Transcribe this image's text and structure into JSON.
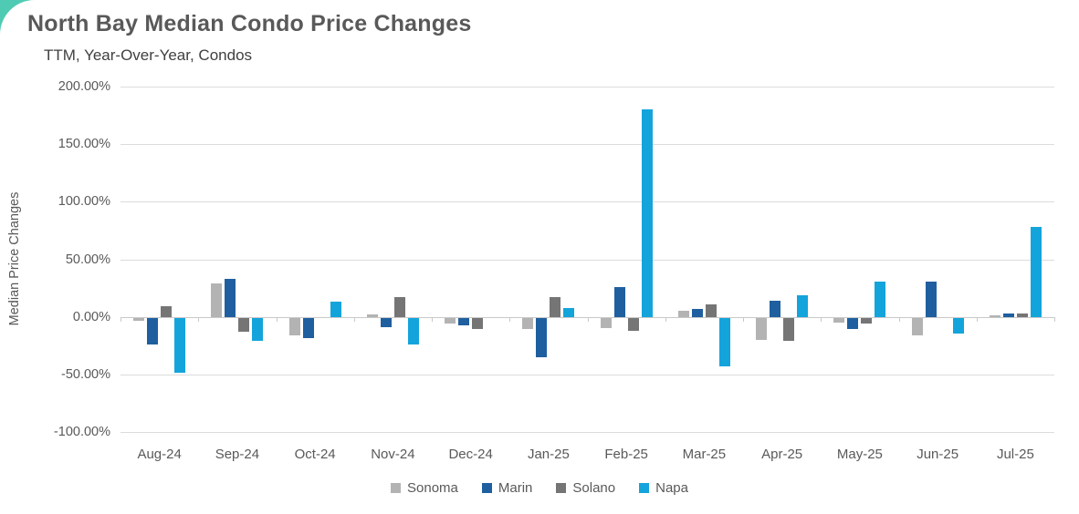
{
  "page": {
    "accent_color": "#4FCBB3",
    "background_color": "#FFFFFF"
  },
  "chart_data": {
    "type": "bar",
    "title": "North Bay Median Condo Price Changes",
    "subtitle": "TTM, Year-Over-Year, Condos",
    "ylabel": "Median Price Changes",
    "xlabel": "",
    "unit": "percent",
    "ylim": [
      -100,
      200
    ],
    "yticks": [
      200,
      150,
      100,
      50,
      0,
      -50,
      -100
    ],
    "ytick_labels": [
      "200.00%",
      "150.00%",
      "100.00%",
      "50.00%",
      "0.00%",
      "-50.00%",
      "-100.00%"
    ],
    "grid": true,
    "legend_position": "bottom",
    "categories": [
      "Aug-24",
      "Sep-24",
      "Oct-24",
      "Nov-24",
      "Dec-24",
      "Jan-25",
      "Feb-25",
      "Mar-25",
      "Apr-25",
      "May-25",
      "Jun-25",
      "Jul-25"
    ],
    "series": [
      {
        "name": "Sonoma",
        "color": "#B3B3B3",
        "values": [
          -3,
          29,
          -15,
          2,
          -5,
          -10,
          -9,
          5,
          -19,
          -4,
          -15,
          1
        ]
      },
      {
        "name": "Marin",
        "color": "#1F5F9F",
        "values": [
          -23,
          33,
          -18,
          -8,
          -7,
          -34,
          26,
          7,
          14,
          -10,
          31,
          3
        ]
      },
      {
        "name": "Solano",
        "color": "#757575",
        "values": [
          9,
          -12,
          0,
          17,
          -10,
          17,
          -11,
          11,
          -20,
          -5,
          0,
          3
        ]
      },
      {
        "name": "Napa",
        "color": "#14A4DC",
        "values": [
          -48,
          -20,
          13,
          -23,
          0,
          8,
          180,
          -42,
          19,
          31,
          -14,
          78
        ]
      }
    ]
  }
}
